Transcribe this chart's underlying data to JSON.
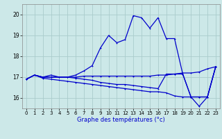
{
  "xlabel": "Graphe des températures (°c)",
  "bg_color": "#cce8e8",
  "grid_color": "#aacccc",
  "line_color": "#0000cc",
  "ylim": [
    15.5,
    20.5
  ],
  "yticks": [
    16,
    17,
    18,
    19,
    20
  ],
  "xlim": [
    -0.5,
    23.5
  ],
  "xticks": [
    0,
    1,
    2,
    3,
    4,
    5,
    6,
    7,
    8,
    9,
    10,
    11,
    12,
    13,
    14,
    15,
    16,
    17,
    18,
    19,
    20,
    21,
    22,
    23
  ],
  "series1_x": [
    0,
    1,
    2,
    3,
    4,
    5,
    6,
    7,
    8,
    9,
    10,
    11,
    12,
    13,
    14,
    15,
    16,
    17,
    18,
    19,
    20,
    21,
    22,
    23
  ],
  "series1_y": [
    16.9,
    17.1,
    17.0,
    17.1,
    17.0,
    17.0,
    17.1,
    17.3,
    17.55,
    18.4,
    19.0,
    18.65,
    18.8,
    19.95,
    19.85,
    19.35,
    19.85,
    18.85,
    18.85,
    17.15,
    16.05,
    15.6,
    16.05,
    17.5
  ],
  "series2_x": [
    0,
    1,
    2,
    3,
    4,
    5,
    6,
    7,
    8,
    9,
    10,
    11,
    12,
    13,
    14,
    15,
    16,
    17,
    18,
    19,
    20,
    21,
    22,
    23
  ],
  "series2_y": [
    16.9,
    17.1,
    17.0,
    17.0,
    17.0,
    17.0,
    17.0,
    17.05,
    17.05,
    17.05,
    17.05,
    17.05,
    17.05,
    17.05,
    17.05,
    17.05,
    17.1,
    17.1,
    17.15,
    17.2,
    17.2,
    17.25,
    17.4,
    17.5
  ],
  "series3_x": [
    0,
    1,
    2,
    3,
    4,
    5,
    6,
    7,
    8,
    9,
    10,
    11,
    12,
    13,
    14,
    15,
    16,
    17,
    18,
    19,
    20,
    21,
    22,
    23
  ],
  "series3_y": [
    16.9,
    17.1,
    16.95,
    16.9,
    16.85,
    16.8,
    16.75,
    16.7,
    16.65,
    16.6,
    16.55,
    16.5,
    16.45,
    16.4,
    16.35,
    16.3,
    16.3,
    16.25,
    16.1,
    16.05,
    16.05,
    16.05,
    16.05,
    17.5
  ],
  "series4_x": [
    0,
    1,
    2,
    3,
    4,
    5,
    6,
    7,
    8,
    9,
    10,
    11,
    12,
    13,
    14,
    15,
    16,
    17,
    18,
    19,
    20,
    21,
    22,
    23
  ],
  "series4_y": [
    16.9,
    17.1,
    17.0,
    17.0,
    17.0,
    17.0,
    16.95,
    16.9,
    16.85,
    16.75,
    16.7,
    16.65,
    16.65,
    16.6,
    16.55,
    16.5,
    16.45,
    17.15,
    17.15,
    17.15,
    16.05,
    16.05,
    16.05,
    17.5
  ]
}
